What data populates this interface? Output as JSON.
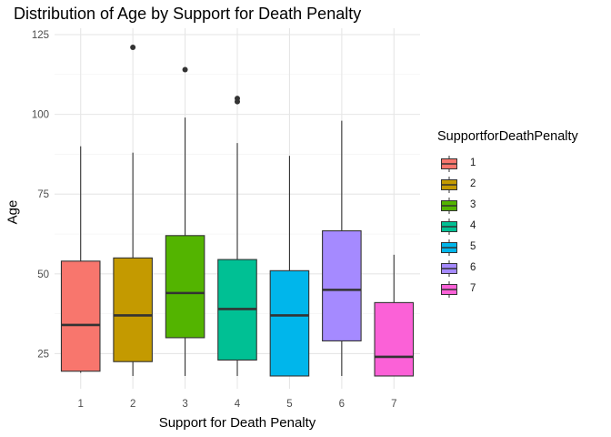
{
  "chart_data": {
    "type": "boxplot",
    "title": "Distribution of Age by Support for Death Penalty",
    "xlabel": "Support for Death Penalty",
    "ylabel": "Age",
    "categories": [
      "1",
      "2",
      "3",
      "4",
      "5",
      "6",
      "7"
    ],
    "ylim": [
      14,
      127
    ],
    "yticks": [
      25,
      50,
      75,
      100,
      125
    ],
    "grid": true,
    "legend": {
      "title": "SupportforDeathPenalty",
      "position": "right"
    },
    "series": [
      {
        "category": "1",
        "min": 19,
        "q1": 19.5,
        "median": 34,
        "q3": 54,
        "max": 90,
        "outliers": [],
        "color": "#F8766D"
      },
      {
        "category": "2",
        "min": 18,
        "q1": 22.5,
        "median": 37,
        "q3": 55,
        "max": 88,
        "outliers": [
          121
        ],
        "color": "#C49A00"
      },
      {
        "category": "3",
        "min": 18,
        "q1": 30,
        "median": 44,
        "q3": 62,
        "max": 99,
        "outliers": [
          114
        ],
        "color": "#53B400"
      },
      {
        "category": "4",
        "min": 18,
        "q1": 23,
        "median": 39,
        "q3": 54.5,
        "max": 91,
        "outliers": [
          104,
          105
        ],
        "color": "#00C094"
      },
      {
        "category": "5",
        "min": 18,
        "q1": 18,
        "median": 37,
        "q3": 51,
        "max": 87,
        "outliers": [],
        "color": "#00B6EB"
      },
      {
        "category": "6",
        "min": 18,
        "q1": 29,
        "median": 45,
        "q3": 63.5,
        "max": 98,
        "outliers": [],
        "color": "#A58AFF"
      },
      {
        "category": "7",
        "min": 18,
        "q1": 18,
        "median": 24,
        "q3": 41,
        "max": 56,
        "outliers": [],
        "color": "#FB61D7"
      }
    ]
  }
}
